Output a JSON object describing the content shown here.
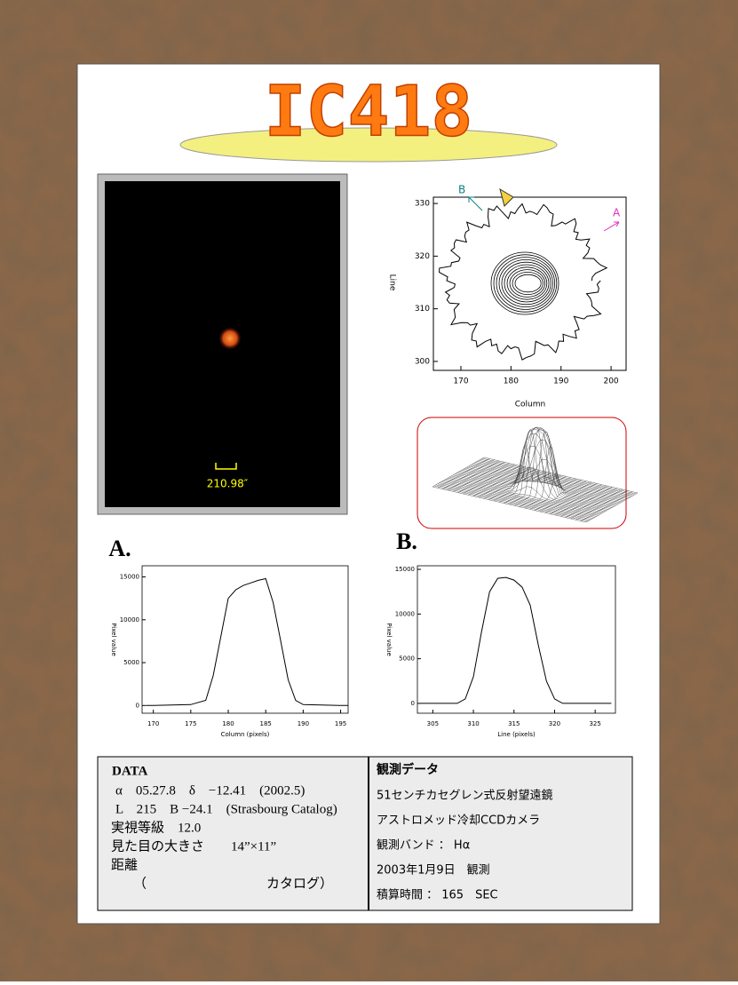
{
  "title": "IC418",
  "image": {
    "scale_label": "210.98″"
  },
  "contour": {
    "xlabel": "Column",
    "ylabel": "Line",
    "xlim": [
      164.5,
      203
    ],
    "ylim": [
      298.3,
      331.2
    ],
    "xticks": [
      170,
      180,
      190,
      200
    ],
    "yticks": [
      300,
      310,
      320,
      330
    ],
    "markers": [
      "A",
      "B"
    ]
  },
  "chart_data": [
    {
      "type": "line",
      "title": "A.",
      "xlabel": "Column (pixels)",
      "ylabel": "Pixel value",
      "x": [
        169,
        170,
        175,
        177,
        178,
        179,
        180,
        181,
        182,
        183,
        184,
        185,
        186,
        187,
        188,
        189,
        190,
        195,
        196
      ],
      "series": [
        {
          "color": "#000000",
          "values": [
            0,
            0,
            100,
            600,
            3500,
            8000,
            12500,
            13500,
            14000,
            14300,
            14600,
            14800,
            12000,
            7500,
            3000,
            600,
            100,
            0,
            0
          ]
        }
      ],
      "xlim": [
        168.5,
        196
      ],
      "ylim": [
        -900,
        16300
      ],
      "xticks": [
        170,
        175,
        180,
        185,
        190,
        195
      ],
      "yticks": [
        0,
        5000,
        10000,
        15000
      ]
    },
    {
      "type": "line",
      "title": "B.",
      "xlabel": "Line (pixels)",
      "ylabel": "Pixel value",
      "x": [
        303.5,
        308,
        309,
        310,
        311,
        312,
        313,
        314,
        315,
        316,
        317,
        318,
        319,
        320,
        321,
        327
      ],
      "series": [
        {
          "color": "#000000",
          "values": [
            0,
            0,
            500,
            3000,
            8000,
            12500,
            14000,
            14100,
            13800,
            13000,
            11000,
            6500,
            2500,
            500,
            0,
            0
          ]
        }
      ],
      "xlim": [
        303.1,
        327.5
      ],
      "ylim": [
        -1100,
        15400
      ],
      "xticks": [
        305,
        310,
        315,
        320,
        325
      ],
      "yticks": [
        0,
        5000,
        10000,
        15000
      ]
    }
  ],
  "data_table": {
    "left": {
      "heading": "DATA",
      "rows": [
        "α　05.27.8　δ　−12.41　(2002.5)",
        "L　215　B −24.1　(Strasbourg Catalog)",
        "実視等級　12.0",
        "見た目の大きさ　　14”×11”",
        "距離",
        "（　　　　　　　　　カタログ）"
      ]
    },
    "right": {
      "heading": "観測データ",
      "rows": [
        "51センチカセグレン式反射望遠鏡",
        "アストロメッド冷却CCDカメラ",
        "観測バンド ： Hα",
        "2003年1月9日　観測",
        "積算時間 ： 165　SEC"
      ]
    }
  }
}
